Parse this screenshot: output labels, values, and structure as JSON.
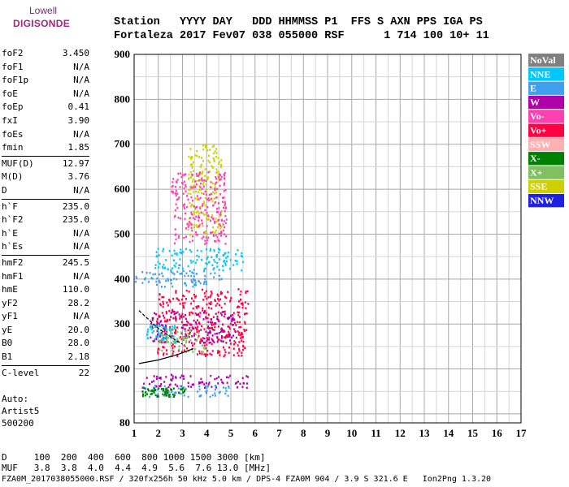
{
  "logo": {
    "line1": "Lowell",
    "line2": "DIGISONDE"
  },
  "header": {
    "line1": "Station   YYYY DAY   DDD HHMMSS P1  FFS S AXN PPS IGA PS",
    "line2": "Fortaleza 2017 Fev07 038 055000 RSF      1 714 100 10+ 11"
  },
  "parameters": {
    "group1": [
      {
        "label": "foF2",
        "value": "3.450"
      },
      {
        "label": "foF1",
        "value": "N/A"
      },
      {
        "label": "foF1p",
        "value": "N/A"
      },
      {
        "label": "foE",
        "value": "N/A"
      },
      {
        "label": "foEp",
        "value": "0.41"
      },
      {
        "label": "fxI",
        "value": "3.90"
      },
      {
        "label": "foEs",
        "value": "N/A"
      },
      {
        "label": "fmin",
        "value": "1.85"
      }
    ],
    "group2": [
      {
        "label": "MUF(D)",
        "value": "12.97"
      },
      {
        "label": "M(D)",
        "value": "3.76"
      },
      {
        "label": "D",
        "value": "N/A"
      }
    ],
    "group3": [
      {
        "label": "h`F",
        "value": "235.0"
      },
      {
        "label": "h`F2",
        "value": "235.0"
      },
      {
        "label": "h`E",
        "value": "N/A"
      },
      {
        "label": "h`Es",
        "value": "N/A"
      }
    ],
    "group4": [
      {
        "label": "hmF2",
        "value": "245.5"
      },
      {
        "label": "hmF1",
        "value": "N/A"
      },
      {
        "label": "hmE",
        "value": "110.0"
      },
      {
        "label": "yF2",
        "value": "28.2"
      },
      {
        "label": "yF1",
        "value": "N/A"
      },
      {
        "label": "yE",
        "value": "20.0"
      },
      {
        "label": "B0",
        "value": "28.0"
      },
      {
        "label": "B1",
        "value": "2.18"
      }
    ],
    "group5": [
      {
        "label": "C-level",
        "value": "22"
      }
    ]
  },
  "auto": {
    "line1": "Auto:",
    "line2": "Artist5",
    "line3": "500200"
  },
  "footer": {
    "d_line": "D     100  200  400  600  800 1000 1500 3000 [km]",
    "muf_line": "MUF   3.8  3.8  4.0  4.4  4.9  5.6  7.6 13.0 [MHz]",
    "info_line": "FZA0M_2017038055000.RSF / 320fx256h 50 kHz 5.0 km / DPS-4 FZA0M 904 / 3.9 S 321.6 E   Ion2Png 1.3.20"
  },
  "legend": [
    {
      "label": "NoVal",
      "color": "#808080"
    },
    {
      "label": "NNE",
      "color": "#00c8ff"
    },
    {
      "label": "E",
      "color": "#40a0f0"
    },
    {
      "label": "W",
      "color": "#b000a8"
    },
    {
      "label": "Vo-",
      "color": "#ff40b0"
    },
    {
      "label": "Vo+",
      "color": "#ff0040"
    },
    {
      "label": "SSW",
      "color": "#ffb0b0"
    },
    {
      "label": "X-",
      "color": "#008000"
    },
    {
      "label": "X+",
      "color": "#80c060"
    },
    {
      "label": "SSE",
      "color": "#d0d000"
    },
    {
      "label": "NNW",
      "color": "#2020e0"
    }
  ],
  "chart_data": {
    "type": "scatter",
    "xlim": [
      1,
      17
    ],
    "ylim": [
      80,
      900
    ],
    "x_ticks": [
      1,
      2,
      3,
      4,
      5,
      6,
      7,
      8,
      9,
      10,
      11,
      12,
      13,
      14,
      15,
      16,
      17
    ],
    "y_ticks": [
      80,
      200,
      300,
      400,
      500,
      600,
      700,
      800,
      900
    ],
    "grid": true,
    "legend_position": "right",
    "traces": [
      {
        "mode": "E",
        "fmin": 1.0,
        "fmax": 4.6,
        "hmin": 385,
        "hmax": 420
      },
      {
        "mode": "NNE",
        "fmin": 1.8,
        "fmax": 5.5,
        "hmin": 420,
        "hmax": 470
      },
      {
        "mode": "Vo+",
        "fmin": 1.9,
        "fmax": 5.7,
        "hmin": 230,
        "hmax": 380
      },
      {
        "mode": "W",
        "fmin": 1.6,
        "fmax": 5.2,
        "hmin": 260,
        "hmax": 330
      },
      {
        "mode": "W",
        "fmin": 1.3,
        "fmax": 5.7,
        "hmin": 160,
        "hmax": 190
      },
      {
        "mode": "E",
        "fmin": 1.2,
        "fmax": 5.0,
        "hmin": 140,
        "hmax": 165
      },
      {
        "mode": "X-",
        "fmin": 1.3,
        "fmax": 3.1,
        "hmin": 140,
        "hmax": 160
      },
      {
        "mode": "SSE",
        "fmin": 3.2,
        "fmax": 4.6,
        "hmin": 500,
        "hmax": 700
      },
      {
        "mode": "Vo-",
        "fmin": 2.5,
        "fmax": 4.8,
        "hmin": 480,
        "hmax": 640
      },
      {
        "mode": "NNE",
        "fmin": 1.5,
        "fmax": 2.7,
        "hmin": 260,
        "hmax": 300
      },
      {
        "mode": "X+",
        "fmin": 2.0,
        "fmax": 3.9,
        "hmin": 240,
        "hmax": 290
      }
    ],
    "profile_curve": [
      {
        "x": 1.2,
        "y": 212
      },
      {
        "x": 2.0,
        "y": 220
      },
      {
        "x": 2.8,
        "y": 232
      },
      {
        "x": 3.45,
        "y": 245
      }
    ],
    "profile_curve2": [
      {
        "x": 1.2,
        "y": 330
      },
      {
        "x": 2.0,
        "y": 290
      },
      {
        "x": 2.6,
        "y": 268
      },
      {
        "x": 3.0,
        "y": 255
      }
    ]
  }
}
